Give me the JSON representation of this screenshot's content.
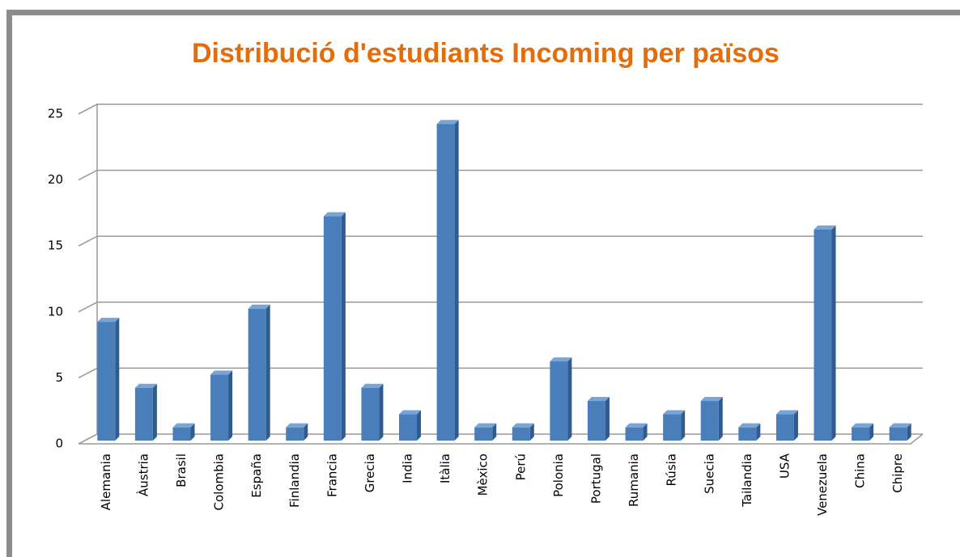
{
  "chart_data": {
    "type": "bar",
    "title": "Distribució d'estudiants Incoming per països",
    "categories": [
      "Alemania",
      "Àustria",
      "Brasil",
      "Colombia",
      "España",
      "Finlandia",
      "Francia",
      "Grecia",
      "India",
      "Itàlia",
      "Mèxico",
      "Perú",
      "Polonia",
      "Portugal",
      "Rumania",
      "Rúsia",
      "Suecia",
      "Tailandia",
      "USA",
      "Venezuela",
      "China",
      "Chipre"
    ],
    "values": [
      9,
      4,
      1,
      5,
      10,
      1,
      17,
      4,
      2,
      24,
      1,
      1,
      6,
      3,
      1,
      2,
      3,
      1,
      2,
      16,
      1,
      1
    ],
    "color": "#4a7ebb",
    "ylim": [
      0,
      25
    ],
    "yticks": [
      0,
      5,
      10,
      15,
      20,
      25
    ],
    "grid": true
  }
}
